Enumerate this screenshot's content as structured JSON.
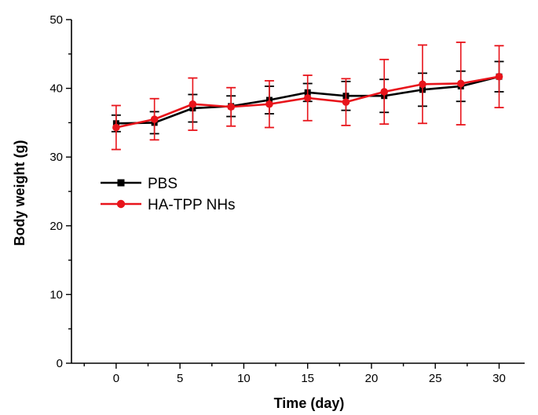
{
  "chart_data": {
    "type": "line",
    "xlabel": "Time (day)",
    "ylabel": "Body weight (g)",
    "xlim": [
      -3.5,
      32
    ],
    "ylim": [
      0,
      50
    ],
    "x_ticks": [
      0,
      5,
      10,
      15,
      20,
      25,
      30
    ],
    "y_ticks": [
      0,
      10,
      20,
      30,
      40,
      50
    ],
    "x": [
      0,
      3,
      6,
      9,
      12,
      15,
      18,
      21,
      24,
      27,
      30
    ],
    "legend_position": "center-left",
    "grid": false,
    "series": [
      {
        "name": "PBS",
        "color": "#000000",
        "marker": "square",
        "values": [
          34.9,
          35.0,
          37.1,
          37.4,
          38.3,
          39.4,
          38.9,
          38.9,
          39.8,
          40.3,
          41.7
        ],
        "errors": [
          1.2,
          1.6,
          2.0,
          1.5,
          2.0,
          1.3,
          2.1,
          2.4,
          2.4,
          2.2,
          2.2
        ]
      },
      {
        "name": "HA-TPP NHs",
        "color": "#e8141b",
        "marker": "circle",
        "values": [
          34.3,
          35.5,
          37.7,
          37.3,
          37.7,
          38.6,
          38.0,
          39.5,
          40.6,
          40.7,
          41.7
        ],
        "errors": [
          3.2,
          3.0,
          3.8,
          2.8,
          3.4,
          3.3,
          3.4,
          4.7,
          5.7,
          6.0,
          4.5
        ]
      }
    ]
  }
}
